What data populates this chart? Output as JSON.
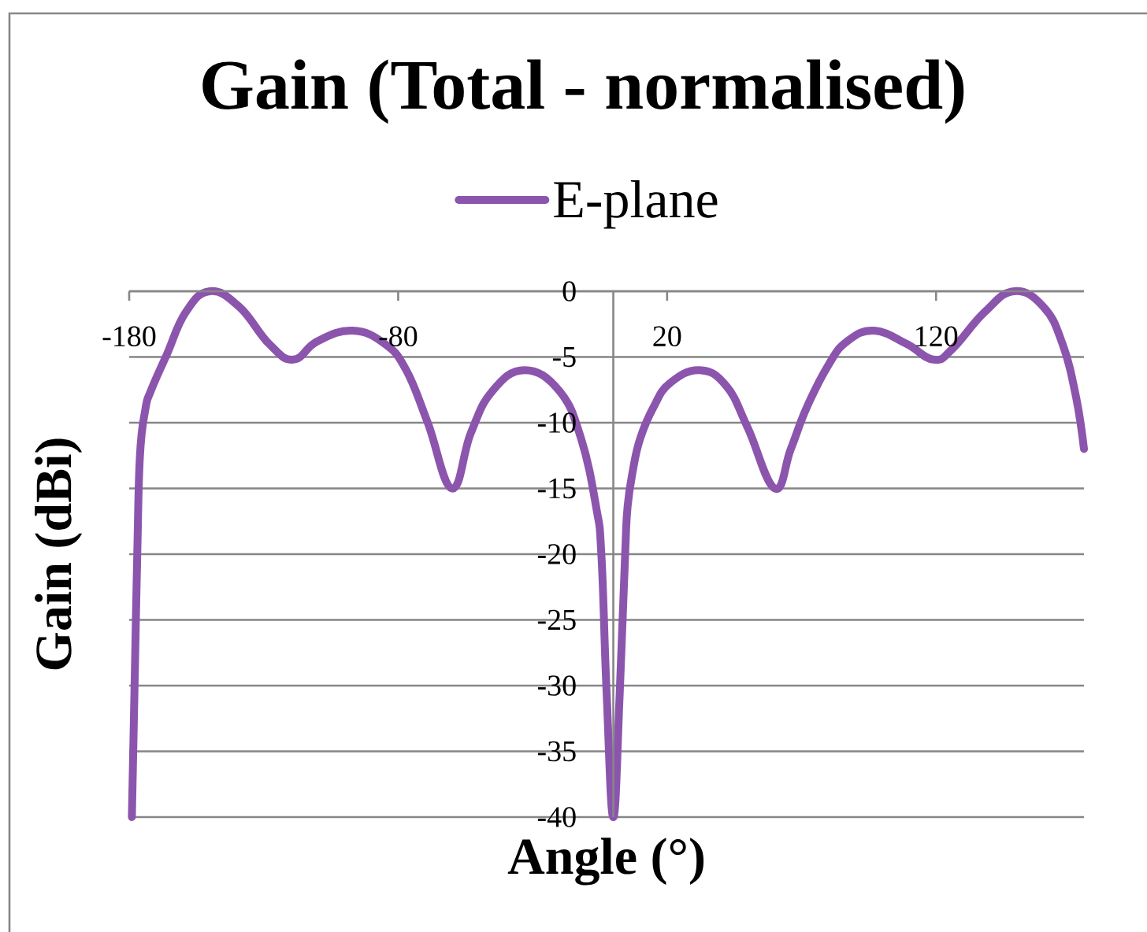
{
  "chart_data": {
    "type": "line",
    "title": "Gain (Total - normalised)",
    "xlabel": "Angle (°)",
    "ylabel": "Gain (dBi)",
    "x": [
      -179,
      -178,
      -177,
      -176,
      -174,
      -172,
      -166,
      -159,
      -150,
      -139,
      -128,
      -119,
      -110,
      -97,
      -85,
      -77,
      -69,
      -60,
      -53,
      -45,
      -33,
      -20,
      -12,
      -6.4,
      -4.4,
      -2.5,
      0,
      2.4,
      4.4,
      5.3,
      7.3,
      10,
      15,
      21,
      32,
      42,
      50,
      60,
      66,
      72,
      80,
      87,
      97,
      109,
      119,
      126,
      138,
      149,
      160,
      167,
      172,
      175
    ],
    "series": [
      {
        "name": "E-plane",
        "color": "#8c55ad",
        "values": [
          -40,
          -30,
          -20,
          -12.5,
          -9,
          -7.6,
          -4.8,
          -1.6,
          0,
          -1.2,
          -4,
          -5.2,
          -3.8,
          -3,
          -4,
          -6,
          -10,
          -15,
          -10.8,
          -7.6,
          -6,
          -7.6,
          -11.2,
          -16.4,
          -20.2,
          -30.5,
          -40,
          -30.5,
          -20,
          -16.4,
          -13.6,
          -11.2,
          -8.8,
          -7,
          -6,
          -7.2,
          -10.4,
          -15,
          -12,
          -8.8,
          -5.6,
          -3.8,
          -3,
          -4,
          -5.2,
          -4.4,
          -1.6,
          0,
          -1.2,
          -4,
          -8,
          -12
        ]
      }
    ],
    "xlim": [
      -180,
      175
    ],
    "xticks": [
      -180,
      -80,
      20,
      120
    ],
    "ylim": [
      -40,
      0
    ],
    "yticks": [
      -40,
      -35,
      -30,
      -25,
      -20,
      -15,
      -10,
      -5,
      0
    ],
    "grid": "y",
    "legend": "top",
    "marker": "none",
    "line_style": "solid"
  }
}
